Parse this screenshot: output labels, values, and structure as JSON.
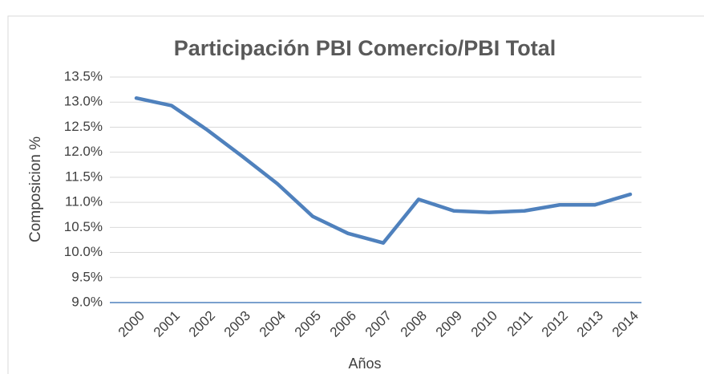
{
  "chart_data": {
    "type": "line",
    "title": "Participación PBI Comercio/PBI Total",
    "y_label": "Composicion %",
    "x_label": "Años",
    "categories": [
      "2000",
      "2001",
      "2002",
      "2003",
      "2004",
      "2005",
      "2006",
      "2007",
      "2008",
      "2009",
      "2010",
      "2011",
      "2012",
      "2013",
      "2014"
    ],
    "series": [
      {
        "name": "Participación",
        "color": "#4f81bd",
        "values": [
          13.08,
          12.93,
          12.45,
          11.92,
          11.37,
          10.72,
          10.38,
          10.19,
          11.06,
          10.83,
          10.8,
          10.83,
          10.95,
          10.95,
          11.16
        ]
      }
    ],
    "ylim": [
      9.0,
      13.5
    ],
    "yticks": [
      {
        "value": 9.0,
        "label": "9.0%"
      },
      {
        "value": 9.5,
        "label": "9.5%"
      },
      {
        "value": 10.0,
        "label": "10.0%"
      },
      {
        "value": 10.5,
        "label": "10.5%"
      },
      {
        "value": 11.0,
        "label": "11.0%"
      },
      {
        "value": 11.5,
        "label": "11.5%"
      },
      {
        "value": 12.0,
        "label": "12.0%"
      },
      {
        "value": 12.5,
        "label": "12.5%"
      },
      {
        "value": 13.0,
        "label": "13.0%"
      },
      {
        "value": 13.5,
        "label": "13.5%"
      }
    ],
    "grid": true
  }
}
